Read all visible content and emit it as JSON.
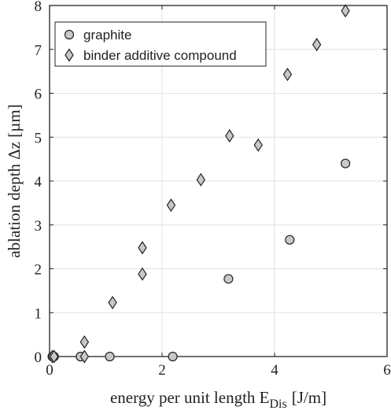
{
  "chart_data": {
    "type": "scatter",
    "xlabel": "energy per unit length E",
    "xlabel_sub": "Dis",
    "xlabel_unit": "[J/m]",
    "ylabel": "ablation depth Δz [µm]",
    "xlim": [
      0,
      6
    ],
    "ylim": [
      0,
      8
    ],
    "xticks": [
      "0",
      "2",
      "4",
      "6"
    ],
    "yticks": [
      "0",
      "1",
      "2",
      "3",
      "4",
      "5",
      "6",
      "7",
      "8"
    ],
    "grid": true,
    "legend_position": "top-left",
    "colors": {
      "marker_fill": "#c8c8c8",
      "marker_edge": "#222222",
      "grid": "#e2e2e2"
    },
    "series": [
      {
        "name": "graphite",
        "marker": "circle",
        "points": [
          {
            "x": 0.05,
            "y": 0.0
          },
          {
            "x": 0.08,
            "y": 0.0
          },
          {
            "x": 0.55,
            "y": 0.0
          },
          {
            "x": 1.07,
            "y": 0.0
          },
          {
            "x": 2.19,
            "y": 0.0
          },
          {
            "x": 3.18,
            "y": 1.77
          },
          {
            "x": 4.27,
            "y": 2.66
          },
          {
            "x": 5.26,
            "y": 4.4
          }
        ]
      },
      {
        "name": "binder additive compound",
        "marker": "diamond",
        "points": [
          {
            "x": 0.05,
            "y": 0.0
          },
          {
            "x": 0.08,
            "y": 0.0
          },
          {
            "x": 0.62,
            "y": 0.0
          },
          {
            "x": 0.62,
            "y": 0.33
          },
          {
            "x": 1.12,
            "y": 1.23
          },
          {
            "x": 1.65,
            "y": 1.88
          },
          {
            "x": 1.65,
            "y": 2.48
          },
          {
            "x": 2.16,
            "y": 3.45
          },
          {
            "x": 2.69,
            "y": 4.03
          },
          {
            "x": 3.2,
            "y": 5.03
          },
          {
            "x": 3.71,
            "y": 4.82
          },
          {
            "x": 4.23,
            "y": 6.43
          },
          {
            "x": 4.75,
            "y": 7.11
          },
          {
            "x": 5.26,
            "y": 7.88
          }
        ]
      }
    ]
  }
}
